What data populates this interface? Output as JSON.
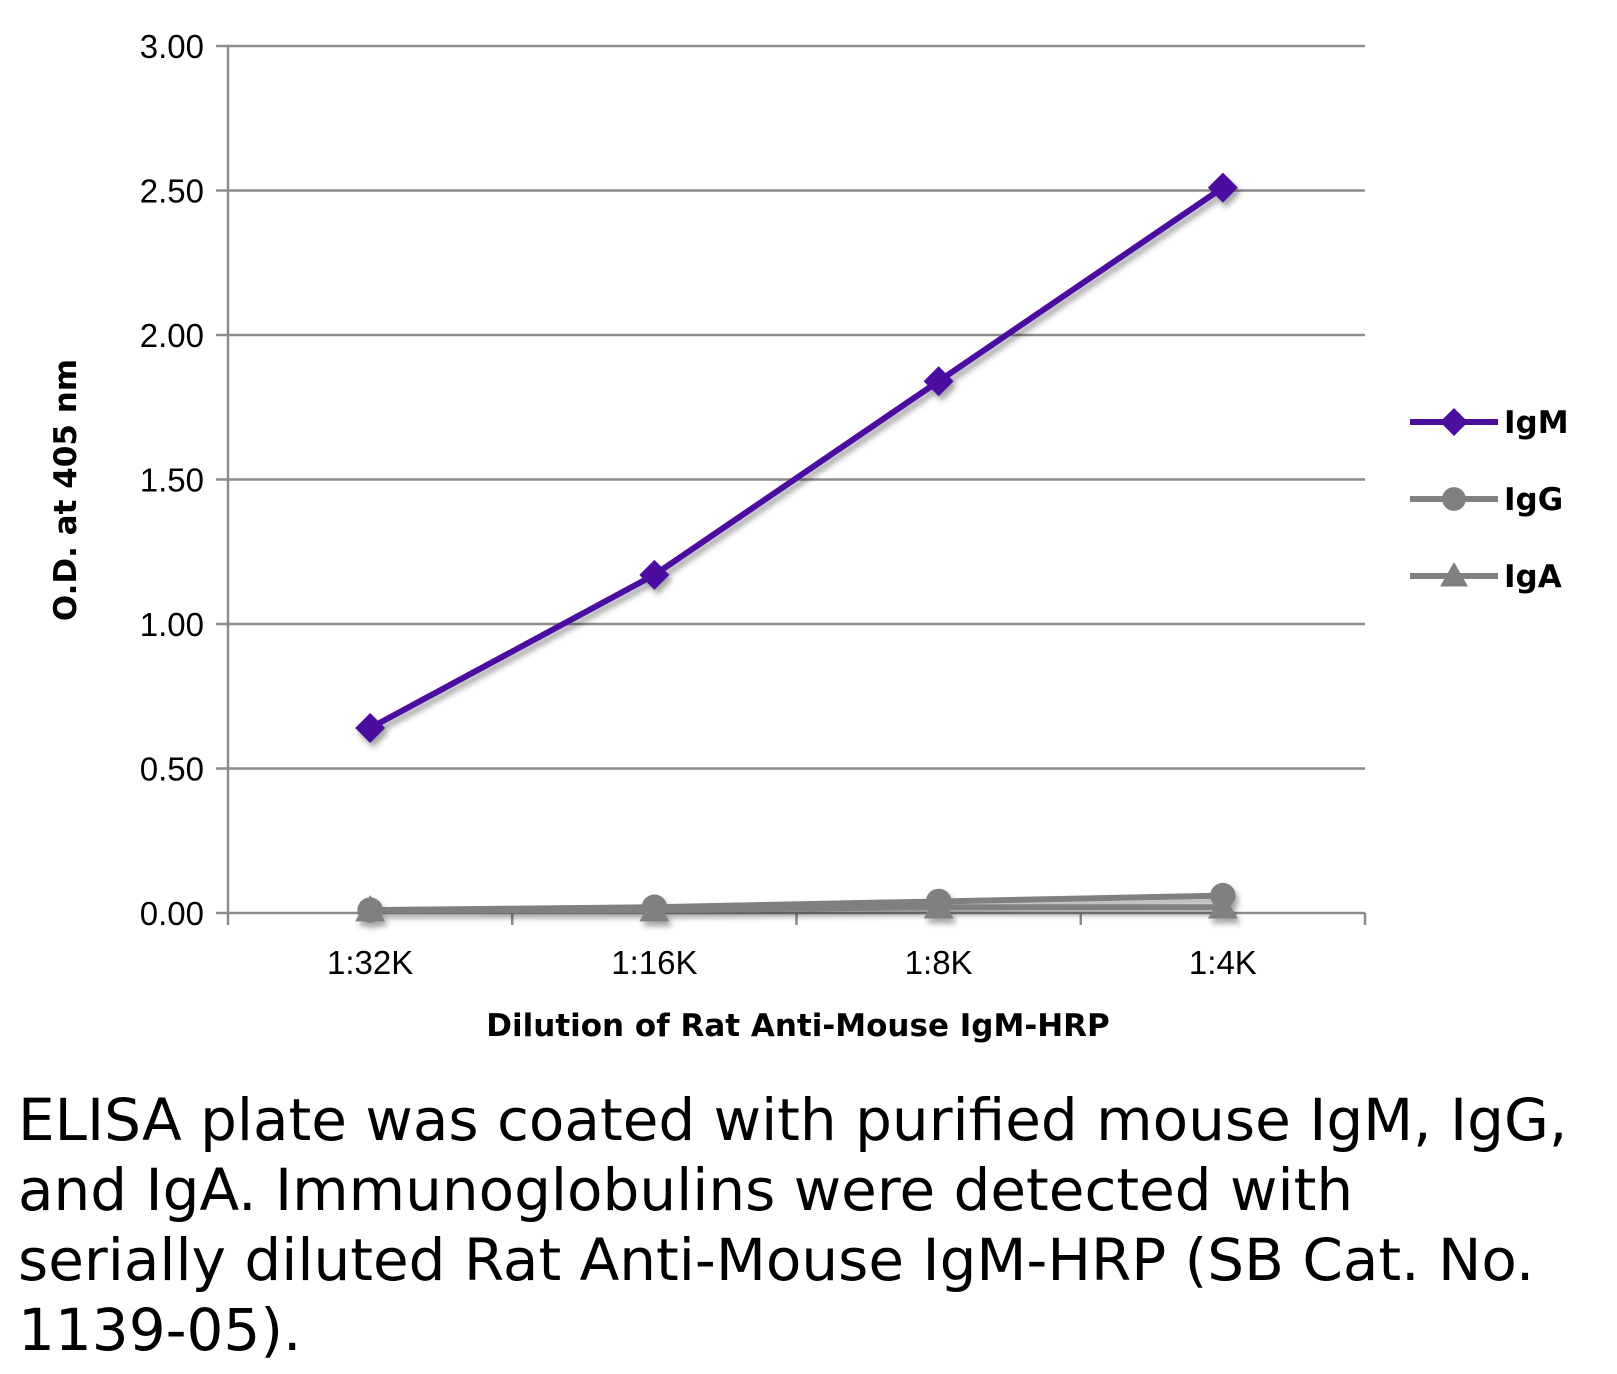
{
  "chart_data": {
    "type": "line",
    "title": "",
    "xlabel": "Dilution of Rat Anti-Mouse IgM-HRP",
    "ylabel": "O.D. at 405 nm",
    "categories": [
      "1:32K",
      "1:16K",
      "1:8K",
      "1:4K"
    ],
    "ylim": [
      0,
      3.0
    ],
    "yticks": [
      "0.00",
      "0.50",
      "1.00",
      "1.50",
      "2.00",
      "2.50",
      "3.00"
    ],
    "grid": true,
    "legend_position": "right",
    "series": [
      {
        "name": "IgM",
        "values": [
          0.64,
          1.17,
          1.84,
          2.51
        ],
        "color": "#4b0fa0",
        "marker": "diamond"
      },
      {
        "name": "IgG",
        "values": [
          0.01,
          0.02,
          0.04,
          0.06
        ],
        "color": "#808080",
        "marker": "circle"
      },
      {
        "name": "IgA",
        "values": [
          0.01,
          0.01,
          0.02,
          0.02
        ],
        "color": "#808080",
        "marker": "triangle"
      }
    ]
  },
  "caption": "ELISA plate was coated with purified mouse IgM, IgG, and IgA.  Immunoglobulins were detected with serially diluted Rat Anti-Mouse IgM-HRP (SB Cat. No. 1139-05)."
}
